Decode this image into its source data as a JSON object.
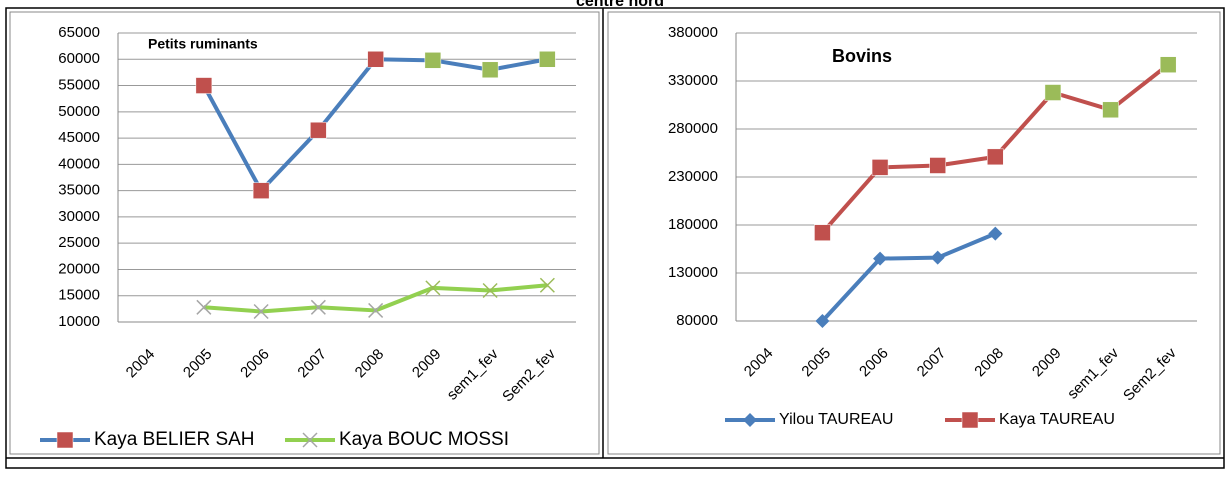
{
  "caption": "centre nord",
  "chart_data": [
    {
      "type": "line",
      "title": "Petits ruminants",
      "categories": [
        "2004",
        "2005",
        "2006",
        "2007",
        "2008",
        "2009",
        "sem1_fev",
        "Sem2_fev"
      ],
      "ylim": [
        10000,
        65000
      ],
      "yticks": [
        10000,
        15000,
        20000,
        25000,
        30000,
        35000,
        40000,
        45000,
        50000,
        55000,
        60000,
        65000
      ],
      "grid": true,
      "legend": "bottom",
      "series": [
        {
          "name": "Kaya BELIER SAH",
          "color": "#4a7ebb",
          "marker": "square",
          "marker_colors": [
            "#c0504d",
            "#c0504d",
            "#c0504d",
            "#c0504d",
            "#c0504d",
            "#9bbb59",
            "#9bbb59",
            "#9bbb59"
          ],
          "values": [
            null,
            55000,
            35000,
            46500,
            60000,
            59800,
            58000,
            60000
          ]
        },
        {
          "name": "Kaya BOUC MOSSI",
          "color": "#92d050",
          "marker": "x",
          "marker_colors": [
            "#a6a6a6",
            "#a6a6a6",
            "#a6a6a6",
            "#a6a6a6",
            "#a6a6a6",
            "#9bbb59",
            "#9bbb59",
            "#9bbb59"
          ],
          "values": [
            null,
            12800,
            12000,
            12800,
            12200,
            16500,
            16000,
            17000
          ]
        }
      ]
    },
    {
      "type": "line",
      "title": "Bovins",
      "categories": [
        "2004",
        "2005",
        "2006",
        "2007",
        "2008",
        "2009",
        "sem1_fev",
        "Sem2_fev"
      ],
      "ylim": [
        80000,
        380000
      ],
      "yticks": [
        80000,
        130000,
        180000,
        230000,
        280000,
        330000,
        380000
      ],
      "grid": true,
      "legend": "bottom",
      "series": [
        {
          "name": "Yilou TAUREAU",
          "color": "#4a7ebb",
          "marker": "diamond",
          "marker_colors": [
            "#4a7ebb",
            "#4a7ebb",
            "#4a7ebb",
            "#4a7ebb",
            "#4a7ebb",
            "#4a7ebb",
            "#4a7ebb",
            "#4a7ebb"
          ],
          "values": [
            null,
            80000,
            145000,
            146000,
            171000,
            null,
            null,
            null
          ]
        },
        {
          "name": "Kaya TAUREAU",
          "color": "#c0504d",
          "marker": "square",
          "marker_colors": [
            "#c0504d",
            "#c0504d",
            "#c0504d",
            "#c0504d",
            "#c0504d",
            "#9bbb59",
            "#9bbb59",
            "#9bbb59"
          ],
          "values": [
            null,
            172000,
            240000,
            242000,
            251000,
            318000,
            300000,
            347000
          ]
        }
      ]
    }
  ]
}
